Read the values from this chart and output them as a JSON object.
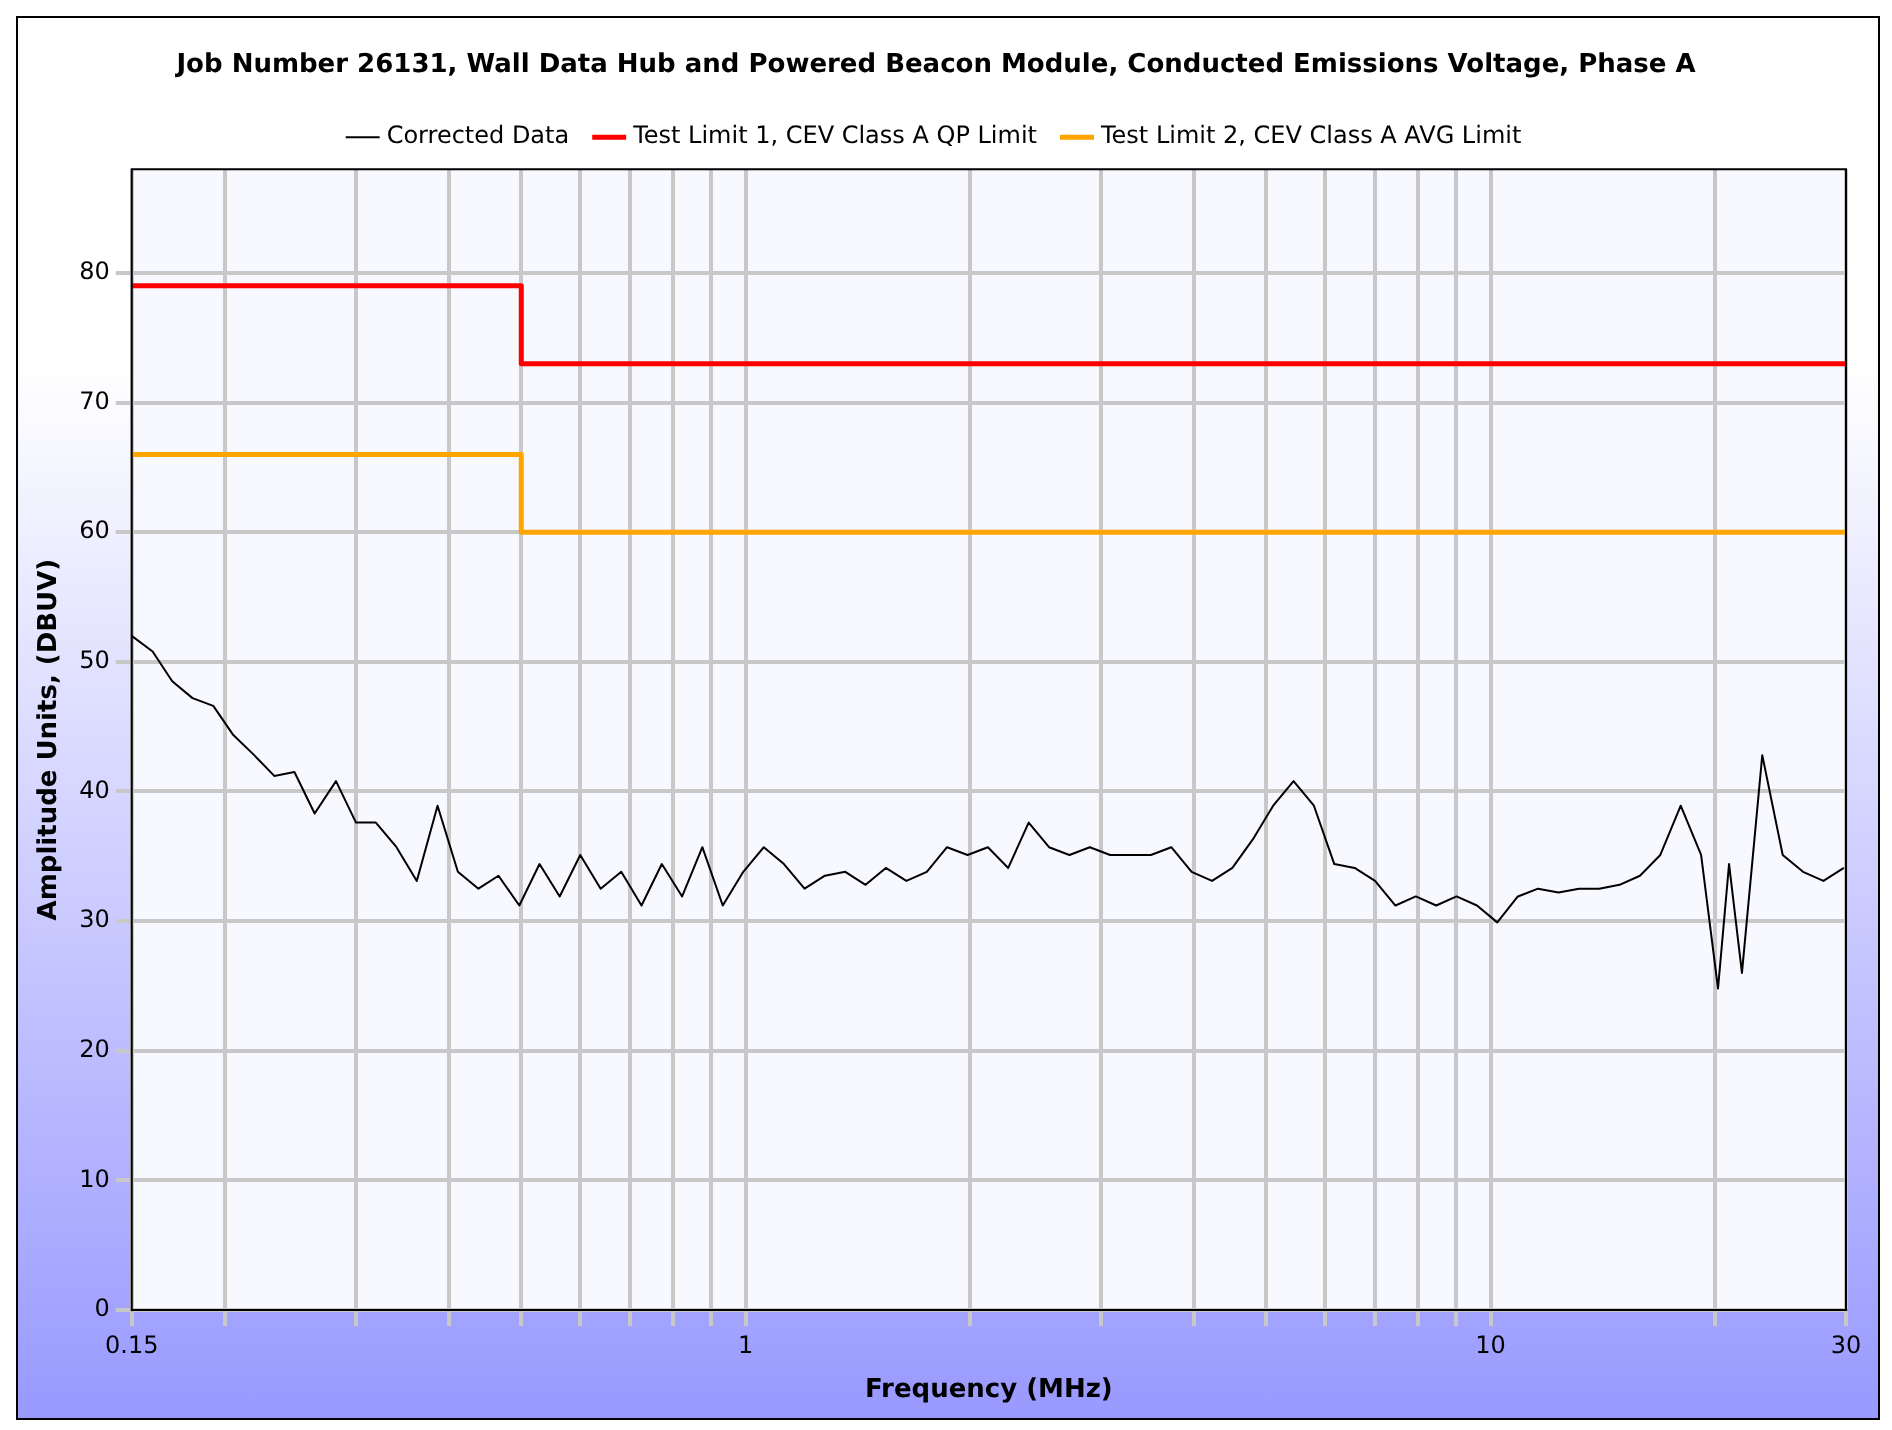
{
  "chart_data": {
    "type": "line",
    "title": "Job Number 26131, Wall Data Hub and Powered Beacon Module, Conducted Emissions Voltage, Phase A",
    "xlabel": "Frequency (MHz)",
    "ylabel": "Amplitude Units, (DBUV)",
    "log": "x",
    "grid": true,
    "legend": "top",
    "marker": "none",
    "line_style": "solid",
    "xlim": [
      0.15,
      30
    ],
    "ylim": [
      0,
      88
    ],
    "xticks": [
      0.15,
      {
        "value": 0.2,
        "label": null
      },
      {
        "value": 0.3,
        "label": null
      },
      {
        "value": 0.4,
        "label": null
      },
      {
        "value": 0.5,
        "label": null
      },
      {
        "value": 0.6,
        "label": null
      },
      {
        "value": 0.7,
        "label": null
      },
      {
        "value": 0.8,
        "label": null
      },
      {
        "value": 0.9,
        "label": null
      },
      1,
      {
        "value": 2,
        "label": null
      },
      {
        "value": 3,
        "label": null
      },
      {
        "value": 4,
        "label": null
      },
      {
        "value": 5,
        "label": null
      },
      {
        "value": 6,
        "label": null
      },
      {
        "value": 7,
        "label": null
      },
      {
        "value": 8,
        "label": null
      },
      {
        "value": 9,
        "label": null
      },
      10,
      {
        "value": 20,
        "label": null
      },
      30
    ],
    "yticks": [
      0,
      10,
      20,
      30,
      40,
      50,
      60,
      70,
      80
    ],
    "series": [
      {
        "name": "Corrected Data",
        "color": "#000000",
        "x": [
          0.15,
          0.16,
          0.17,
          0.181,
          0.193,
          0.205,
          0.219,
          0.233,
          0.248,
          0.264,
          0.282,
          0.3,
          0.319,
          0.34,
          0.362,
          0.386,
          0.411,
          0.438,
          0.466,
          0.497,
          0.529,
          0.563,
          0.6,
          0.639,
          0.681,
          0.725,
          0.772,
          0.822,
          0.875,
          0.932,
          0.993,
          1.058,
          1.126,
          1.2,
          1.278,
          1.361,
          1.449,
          1.543,
          1.644,
          1.751,
          1.864,
          1.986,
          2.115,
          2.252,
          2.399,
          2.555,
          2.721,
          2.898,
          3.086,
          3.287,
          3.5,
          3.728,
          3.97,
          4.228,
          4.503,
          4.796,
          5.108,
          5.44,
          5.793,
          6.17,
          6.571,
          6.998,
          7.453,
          7.938,
          8.454,
          9.003,
          9.589,
          10.21,
          10.88,
          11.58,
          12.34,
          13.14,
          13.99,
          14.9,
          15.87,
          16.9,
          18,
          19.17,
          20.2,
          20.9,
          21.75,
          23.16,
          24.67,
          26.27,
          27.98,
          29.8
        ],
        "values": [
          52,
          50.8,
          48.5,
          47.2,
          46.6,
          44.4,
          42.8,
          41.2,
          41.5,
          38.3,
          40.8,
          37.6,
          37.6,
          35.7,
          33.1,
          38.9,
          33.8,
          32.5,
          33.5,
          31.2,
          34.4,
          31.9,
          35.1,
          32.5,
          33.8,
          31.2,
          34.4,
          31.9,
          35.7,
          31.2,
          33.8,
          35.7,
          34.4,
          32.5,
          33.5,
          33.8,
          32.8,
          34.1,
          33.1,
          33.8,
          35.7,
          35.1,
          35.7,
          34.1,
          37.6,
          35.7,
          35.1,
          35.7,
          35.1,
          35.1,
          35.1,
          35.7,
          33.8,
          33.1,
          34.1,
          36.3,
          38.9,
          40.8,
          38.9,
          34.4,
          34.1,
          33.1,
          31.2,
          31.9,
          31.2,
          31.9,
          31.2,
          29.9,
          31.9,
          32.5,
          32.2,
          32.5,
          32.5,
          32.8,
          33.5,
          35.1,
          38.9,
          35.1,
          24.8,
          34.4,
          26,
          42.8,
          35.1,
          33.8,
          33.1,
          34.1
        ]
      },
      {
        "name": "Test Limit 1, CEV Class A QP Limit",
        "color": "#ff0000",
        "x": [
          0.15,
          0.5,
          0.5,
          30
        ],
        "values": [
          79,
          79,
          73,
          73
        ]
      },
      {
        "name": "Test Limit 2, CEV Class A AVG Limit",
        "color": "#ffa500",
        "x": [
          0.15,
          0.5,
          0.5,
          30
        ],
        "values": [
          66,
          66,
          60,
          60
        ]
      }
    ]
  }
}
